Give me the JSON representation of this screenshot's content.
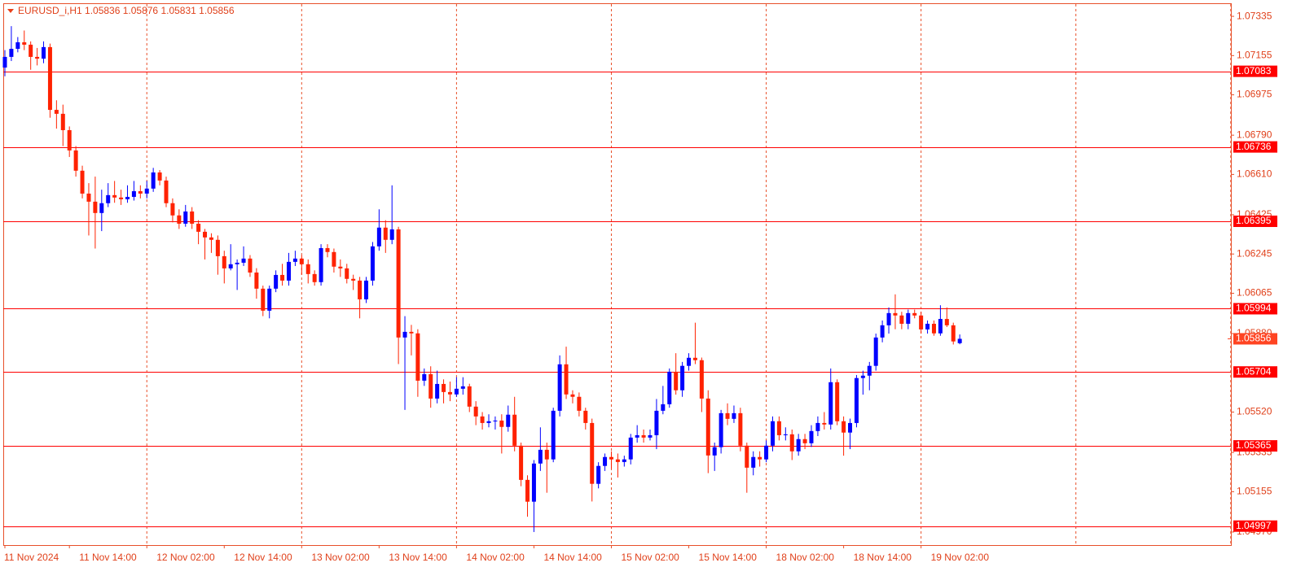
{
  "chart_data": {
    "type": "candlestick",
    "header": "EURUSD_i,H1  1.05836 1.05876 1.05831 1.05856",
    "categories": [
      "11 Nov 2024",
      null,
      null,
      null,
      null,
      null,
      null,
      null,
      null,
      null,
      "11 Nov 14:00",
      null,
      null,
      null,
      null,
      null,
      null,
      null,
      null,
      null,
      null,
      null,
      "12 Nov 02:00",
      null,
      null,
      null,
      null,
      null,
      null,
      null,
      null,
      null,
      null,
      null,
      "12 Nov 14:00",
      null,
      null,
      null,
      null,
      null,
      null,
      null,
      null,
      null,
      null,
      null,
      "13 Nov 02:00",
      null,
      null,
      null,
      null,
      null,
      null,
      null,
      null,
      null,
      null,
      null,
      "13 Nov 14:00",
      null,
      null,
      null,
      null,
      null,
      null,
      null,
      null,
      null,
      null,
      null,
      "14 Nov 02:00",
      null,
      null,
      null,
      null,
      null,
      null,
      null,
      null,
      null,
      null,
      null,
      "14 Nov 14:00",
      null,
      null,
      null,
      null,
      null,
      null,
      null,
      null,
      null,
      null,
      null,
      "15 Nov 02:00",
      null,
      null,
      null,
      null,
      null,
      null,
      null,
      null,
      null,
      null,
      null,
      "15 Nov 14:00",
      null,
      null,
      null,
      null,
      null,
      null,
      null,
      null,
      null,
      null,
      null,
      "18 Nov 02:00",
      null,
      null,
      null,
      null,
      null,
      null,
      null,
      null,
      null,
      null,
      null,
      "18 Nov 14:00",
      null,
      null,
      null,
      null,
      null,
      null,
      null,
      null,
      null,
      null,
      null,
      "19 Nov 02:00",
      null,
      null,
      null,
      null,
      null,
      null
    ],
    "open": [
      1.071,
      1.07149,
      1.07186,
      1.07216,
      1.07205,
      1.07149,
      1.07141,
      1.07194,
      1.06906,
      1.06888,
      1.06813,
      1.0672,
      1.06627,
      1.06522,
      1.06485,
      1.06433,
      1.06478,
      1.06515,
      1.06504,
      1.06496,
      1.06507,
      1.06533,
      1.06522,
      1.06545,
      1.06619,
      1.06582,
      1.06478,
      1.06422,
      1.06384,
      1.0644,
      1.06384,
      1.06347,
      1.06321,
      1.0631,
      1.06235,
      1.06179,
      1.06198,
      1.06205,
      1.06224,
      1.0616,
      1.06086,
      1.05985,
      1.06086,
      1.06149,
      1.06123,
      1.06209,
      1.06224,
      1.06198,
      1.06153,
      1.06116,
      1.06272,
      1.06254,
      1.06187,
      1.06179,
      1.06131,
      1.06123,
      1.06037,
      1.06123,
      1.0628,
      1.06366,
      1.0631,
      1.06358,
      1.05862,
      1.05888,
      1.05881,
      1.05664,
      1.05694,
      1.05582,
      1.05649,
      1.05612,
      1.05601,
      1.05627,
      1.05638,
      1.05545,
      1.055,
      1.0547,
      1.05478,
      1.05481,
      1.05452,
      1.05508,
      1.05366,
      1.05209,
      1.05109,
      1.05284,
      1.05347,
      1.05303,
      1.05526,
      1.05739,
      1.05601,
      1.0559,
      1.05526,
      1.0547,
      1.05191,
      1.05273,
      1.05314,
      1.05303,
      1.05291,
      1.05303,
      1.05403,
      1.05414,
      1.05403,
      1.05414,
      1.05526,
      1.05556,
      1.05705,
      1.0562,
      1.05732,
      1.05769,
      1.05758,
      1.05582,
      1.05321,
      1.05359,
      1.05515,
      1.05489,
      1.05515,
      1.05366,
      1.05265,
      1.05314,
      1.05303,
      1.05366,
      1.05478,
      1.05414,
      1.05418,
      1.0534,
      1.05396,
      1.05377,
      1.05433,
      1.0547,
      1.05463,
      1.05657,
      1.05478,
      1.05426,
      1.0547,
      1.05676,
      1.05687,
      1.05732,
      1.05862,
      1.05918,
      1.05974,
      1.05963,
      1.05925,
      1.05974,
      1.05963,
      1.05899,
      1.05925,
      1.05881,
      1.05947,
      1.05918,
      1.05836
    ],
    "high": [
      1.0718,
      1.0729,
      1.0724,
      1.0727,
      1.0722,
      1.0719,
      1.0722,
      1.0721,
      1.0695,
      1.0693,
      1.0683,
      1.0674,
      1.0665,
      1.0657,
      1.066,
      1.0654,
      1.0657,
      1.0658,
      1.0654,
      1.0656,
      1.0658,
      1.0656,
      1.0658,
      1.0664,
      1.0663,
      1.066,
      1.065,
      1.0645,
      1.0647,
      1.0646,
      1.064,
      1.0636,
      1.0634,
      1.0633,
      1.0626,
      1.0629,
      1.0622,
      1.0628,
      1.0624,
      1.0618,
      1.061,
      1.061,
      1.0617,
      1.062,
      1.0625,
      1.0626,
      1.0624,
      1.0622,
      1.0617,
      1.0629,
      1.0629,
      1.0627,
      1.0622,
      1.062,
      1.0615,
      1.0614,
      1.0614,
      1.063,
      1.0645,
      1.064,
      1.0656,
      1.0637,
      1.0596,
      1.0592,
      1.059,
      1.0572,
      1.0573,
      1.0571,
      1.0567,
      1.0566,
      1.0568,
      1.0568,
      1.0565,
      1.0557,
      1.0552,
      1.0551,
      1.055,
      1.0551,
      1.0555,
      1.0559,
      1.0538,
      1.0523,
      1.053,
      1.0545,
      1.0538,
      1.0554,
      1.0578,
      1.0582,
      1.0562,
      1.0561,
      1.0554,
      1.0549,
      1.0529,
      1.0533,
      1.0534,
      1.0533,
      1.0532,
      1.0542,
      1.0546,
      1.0544,
      1.0544,
      1.0558,
      1.0564,
      1.0572,
      1.0579,
      1.0575,
      1.0579,
      1.0593,
      1.0577,
      1.0562,
      1.0538,
      1.0553,
      1.0556,
      1.0555,
      1.0554,
      1.0538,
      1.0534,
      1.0534,
      1.0539,
      1.055,
      1.055,
      1.0545,
      1.0544,
      1.0542,
      1.0542,
      1.0546,
      1.055,
      1.0552,
      1.0572,
      1.0567,
      1.055,
      1.0549,
      1.0569,
      1.0571,
      1.0575,
      1.0588,
      1.0594,
      1.06,
      1.0606,
      1.0598,
      1.0599,
      1.0599,
      1.0598,
      1.0594,
      1.0594,
      1.0601,
      1.06,
      1.0593,
      1.05876
    ],
    "low": [
      1.0706,
      1.0713,
      1.0717,
      1.0718,
      1.0709,
      1.0711,
      1.0712,
      1.0687,
      1.0682,
      1.0674,
      1.0669,
      1.066,
      1.065,
      1.0633,
      1.0627,
      1.0635,
      1.0646,
      1.0648,
      1.0647,
      1.0648,
      1.0649,
      1.065,
      1.065,
      1.0653,
      1.0656,
      1.0646,
      1.0639,
      1.0636,
      1.0637,
      1.0636,
      1.0629,
      1.0622,
      1.0625,
      1.0615,
      1.0611,
      1.0617,
      1.0608,
      1.0619,
      1.0614,
      1.0604,
      1.0596,
      1.0595,
      1.0607,
      1.061,
      1.061,
      1.0619,
      1.0615,
      1.0611,
      1.061,
      1.061,
      1.0623,
      1.0616,
      1.0614,
      1.0611,
      1.0608,
      1.0595,
      1.0602,
      1.061,
      1.0626,
      1.0625,
      1.0629,
      1.0574,
      1.0553,
      1.0578,
      1.0559,
      1.0564,
      1.0554,
      1.0556,
      1.0556,
      1.0557,
      1.0559,
      1.056,
      1.0552,
      1.0546,
      1.0544,
      1.0545,
      1.0544,
      1.0533,
      1.0543,
      1.0534,
      1.0518,
      1.0504,
      1.0497,
      1.0525,
      1.0515,
      1.0529,
      1.055,
      1.0558,
      1.0556,
      1.055,
      1.0544,
      1.0511,
      1.0517,
      1.0525,
      1.0526,
      1.0522,
      1.0527,
      1.0528,
      1.0538,
      1.0538,
      1.0539,
      1.0535,
      1.0551,
      1.0554,
      1.056,
      1.0559,
      1.0571,
      1.0574,
      1.0552,
      1.0524,
      1.0525,
      1.0533,
      1.0546,
      1.0547,
      1.0534,
      1.0515,
      1.0523,
      1.0527,
      1.0529,
      1.0534,
      1.0539,
      1.0539,
      1.053,
      1.0532,
      1.0535,
      1.0536,
      1.0541,
      1.0544,
      1.0544,
      1.0546,
      1.0532,
      1.0535,
      1.0545,
      1.056,
      1.0562,
      1.0571,
      1.0584,
      1.0588,
      1.059,
      1.059,
      1.059,
      1.0595,
      1.0588,
      1.0588,
      1.0587,
      1.0587,
      1.0591,
      1.0583,
      1.05831
    ],
    "close": [
      1.07149,
      1.07186,
      1.07216,
      1.07205,
      1.07149,
      1.07141,
      1.07194,
      1.06906,
      1.06888,
      1.06813,
      1.0672,
      1.06627,
      1.06522,
      1.06485,
      1.06433,
      1.06478,
      1.06515,
      1.06504,
      1.06496,
      1.06507,
      1.06533,
      1.06522,
      1.06545,
      1.06619,
      1.06582,
      1.06478,
      1.06422,
      1.06384,
      1.0644,
      1.06384,
      1.06347,
      1.06321,
      1.0631,
      1.06235,
      1.06179,
      1.06198,
      1.06205,
      1.06224,
      1.0616,
      1.06086,
      1.05985,
      1.06086,
      1.06149,
      1.06123,
      1.06209,
      1.06224,
      1.06198,
      1.06153,
      1.06116,
      1.06272,
      1.06254,
      1.06187,
      1.06179,
      1.06131,
      1.06123,
      1.06037,
      1.06123,
      1.0628,
      1.06366,
      1.0631,
      1.06358,
      1.05862,
      1.05888,
      1.05881,
      1.05664,
      1.05694,
      1.05582,
      1.05649,
      1.05612,
      1.05601,
      1.05627,
      1.05638,
      1.05545,
      1.055,
      1.0547,
      1.05478,
      1.05481,
      1.05452,
      1.05508,
      1.05366,
      1.05209,
      1.05109,
      1.05284,
      1.05347,
      1.05303,
      1.05526,
      1.05739,
      1.05601,
      1.0559,
      1.05526,
      1.0547,
      1.05191,
      1.05273,
      1.05314,
      1.05303,
      1.05291,
      1.05303,
      1.05403,
      1.05414,
      1.05403,
      1.05414,
      1.05526,
      1.05556,
      1.05705,
      1.0562,
      1.05732,
      1.05769,
      1.05758,
      1.05582,
      1.05321,
      1.05359,
      1.05515,
      1.05489,
      1.05515,
      1.05366,
      1.05265,
      1.05314,
      1.05303,
      1.05366,
      1.05478,
      1.05414,
      1.05418,
      1.0534,
      1.05396,
      1.05377,
      1.05433,
      1.0547,
      1.05463,
      1.05657,
      1.05478,
      1.05426,
      1.0547,
      1.05676,
      1.05687,
      1.05732,
      1.05862,
      1.05918,
      1.05974,
      1.05963,
      1.05925,
      1.05974,
      1.05963,
      1.05899,
      1.05925,
      1.05881,
      1.05947,
      1.05918,
      1.05844,
      1.05856
    ],
    "up_color": "#0000ff",
    "down_color": "#ff2200",
    "levels": [
      1.07083,
      1.06736,
      1.06395,
      1.05994,
      1.05704,
      1.05365,
      1.04997
    ],
    "level_color": "#ff0000",
    "current_price": 1.05856,
    "current_price_color": "#ff4422",
    "ylim": [
      1.0491,
      1.07395
    ],
    "yticks": [
      1.07335,
      1.07155,
      1.06975,
      {
        "value": 1.0679,
        "label": "1.06790"
      },
      {
        "value": 1.0661,
        "label": "1.06610"
      },
      1.06425,
      1.06245,
      1.06065,
      {
        "value": 1.0588,
        "label": "1.05880"
      },
      {
        "value": 1.0552,
        "label": "1.05520"
      },
      1.05335,
      1.05155,
      {
        "value": 1.0497,
        "label": "1.04970"
      }
    ],
    "grid": true
  }
}
